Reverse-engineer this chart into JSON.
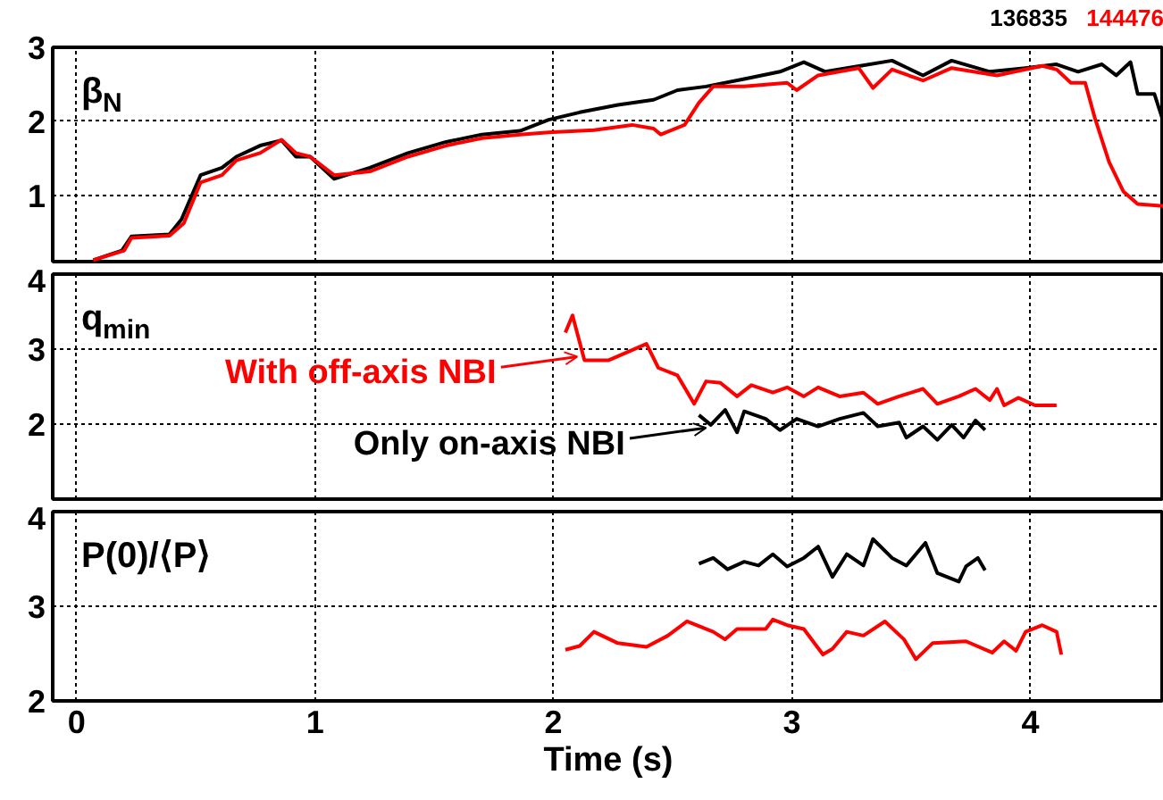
{
  "chart_data": [
    {
      "type": "line",
      "title": "β$_{N}$",
      "xlim": [
        -0.1,
        4.56
      ],
      "xticks": [
        0,
        1,
        2,
        3,
        4
      ],
      "ylim": [
        0.1,
        3
      ],
      "yticks": [
        1,
        2,
        3
      ],
      "grid": true,
      "tick_labels": "y",
      "series": [
        {
          "name": "136835",
          "color": "#000000",
          "x": [
            0.07,
            0.19,
            0.23,
            0.39,
            0.44,
            0.52,
            0.61,
            0.67,
            0.77,
            0.86,
            0.92,
            0.98,
            1.08,
            1.23,
            1.39,
            1.55,
            1.7,
            1.86,
            1.98,
            2.11,
            2.27,
            2.42,
            2.52,
            2.64,
            2.8,
            2.95,
            3.05,
            3.14,
            3.27,
            3.42,
            3.55,
            3.67,
            3.83,
            3.98,
            4.11,
            4.2,
            4.3,
            4.36,
            4.42,
            4.45,
            4.52,
            4.56
          ],
          "values": [
            0.12,
            0.25,
            0.44,
            0.47,
            0.67,
            1.27,
            1.37,
            1.52,
            1.67,
            1.74,
            1.52,
            1.52,
            1.22,
            1.37,
            1.57,
            1.72,
            1.82,
            1.87,
            2.02,
            2.12,
            2.22,
            2.29,
            2.42,
            2.47,
            2.57,
            2.67,
            2.8,
            2.67,
            2.74,
            2.82,
            2.62,
            2.82,
            2.67,
            2.72,
            2.77,
            2.67,
            2.77,
            2.62,
            2.8,
            2.37,
            2.37,
            1.97
          ]
        },
        {
          "name": "144476",
          "color": "#ff0000",
          "x": [
            0.07,
            0.2,
            0.23,
            0.39,
            0.45,
            0.52,
            0.61,
            0.67,
            0.77,
            0.86,
            0.92,
            0.98,
            1.08,
            1.23,
            1.39,
            1.55,
            1.7,
            1.86,
            1.98,
            2.17,
            2.33,
            2.42,
            2.45,
            2.55,
            2.61,
            2.67,
            2.8,
            2.98,
            3.02,
            3.11,
            3.28,
            3.34,
            3.42,
            3.55,
            3.67,
            3.86,
            4.05,
            4.11,
            4.17,
            4.23,
            4.27,
            4.33,
            4.39,
            4.45,
            4.56
          ],
          "values": [
            0.12,
            0.25,
            0.42,
            0.45,
            0.62,
            1.17,
            1.27,
            1.47,
            1.57,
            1.75,
            1.57,
            1.52,
            1.27,
            1.32,
            1.52,
            1.67,
            1.77,
            1.82,
            1.85,
            1.88,
            1.95,
            1.9,
            1.82,
            1.95,
            2.25,
            2.47,
            2.47,
            2.52,
            2.42,
            2.62,
            2.72,
            2.45,
            2.7,
            2.55,
            2.72,
            2.62,
            2.75,
            2.7,
            2.52,
            2.52,
            2.05,
            1.45,
            1.05,
            0.88,
            0.85
          ]
        }
      ]
    },
    {
      "type": "line",
      "title": "q$_{min}$",
      "xlim": [
        -0.1,
        4.56
      ],
      "xticks": [
        0,
        1,
        2,
        3,
        4
      ],
      "ylim": [
        1,
        4
      ],
      "yticks": [
        2,
        3,
        4
      ],
      "grid": true,
      "tick_labels": "y",
      "annotations": [
        {
          "text": "With off-axis NBI",
          "x": 2.1,
          "y": 2.9
        },
        {
          "text": "Only on-axis NBI",
          "x": 2.64,
          "y": 1.95
        }
      ],
      "series": [
        {
          "color": "#000000",
          "x": [
            2.61,
            2.66,
            2.72,
            2.77,
            2.8,
            2.89,
            2.95,
            3.02,
            3.11,
            3.2,
            3.3,
            3.36,
            3.45,
            3.48,
            3.55,
            3.61,
            3.67,
            3.72,
            3.77,
            3.81
          ],
          "values": [
            2.12,
            1.99,
            2.19,
            1.89,
            2.17,
            2.07,
            1.92,
            2.07,
            1.97,
            2.07,
            2.15,
            1.97,
            2.02,
            1.82,
            1.97,
            1.79,
            1.99,
            1.82,
            2.05,
            1.92
          ]
        },
        {
          "color": "#ff0000",
          "x": [
            2.05,
            2.08,
            2.13,
            2.23,
            2.39,
            2.44,
            2.52,
            2.59,
            2.64,
            2.7,
            2.77,
            2.83,
            2.92,
            2.98,
            3.05,
            3.11,
            3.2,
            3.3,
            3.36,
            3.45,
            3.55,
            3.61,
            3.7,
            3.77,
            3.83,
            3.86,
            3.89,
            3.95,
            4.02,
            4.11
          ],
          "values": [
            3.22,
            3.45,
            2.85,
            2.85,
            3.07,
            2.75,
            2.65,
            2.27,
            2.57,
            2.55,
            2.37,
            2.52,
            2.42,
            2.49,
            2.37,
            2.49,
            2.37,
            2.42,
            2.27,
            2.37,
            2.47,
            2.27,
            2.37,
            2.47,
            2.32,
            2.47,
            2.25,
            2.35,
            2.25,
            2.25
          ]
        }
      ]
    },
    {
      "type": "line",
      "title": "P(0)/⟨P⟩",
      "xlabel": "Time (s)",
      "xlim": [
        -0.1,
        4.56
      ],
      "xticks": [
        0,
        1,
        2,
        3,
        4
      ],
      "ylim": [
        2,
        4
      ],
      "yticks": [
        2,
        3,
        4
      ],
      "grid": true,
      "series": [
        {
          "color": "#000000",
          "x": [
            2.61,
            2.67,
            2.73,
            2.8,
            2.86,
            2.92,
            2.98,
            3.05,
            3.11,
            3.17,
            3.23,
            3.3,
            3.34,
            3.42,
            3.48,
            3.56,
            3.61,
            3.7,
            3.73,
            3.78,
            3.81
          ],
          "values": [
            3.45,
            3.51,
            3.39,
            3.47,
            3.43,
            3.55,
            3.42,
            3.51,
            3.63,
            3.31,
            3.55,
            3.43,
            3.71,
            3.51,
            3.43,
            3.67,
            3.35,
            3.26,
            3.42,
            3.51,
            3.38
          ]
        },
        {
          "color": "#ff0000",
          "x": [
            2.05,
            2.11,
            2.17,
            2.27,
            2.39,
            2.48,
            2.56,
            2.67,
            2.72,
            2.77,
            2.89,
            2.92,
            2.98,
            3.05,
            3.13,
            3.17,
            3.23,
            3.3,
            3.39,
            3.47,
            3.52,
            3.59,
            3.73,
            3.84,
            3.89,
            3.94,
            3.98,
            4.05,
            4.11,
            4.13
          ],
          "values": [
            2.54,
            2.58,
            2.73,
            2.61,
            2.57,
            2.69,
            2.84,
            2.73,
            2.65,
            2.76,
            2.76,
            2.86,
            2.8,
            2.76,
            2.49,
            2.55,
            2.73,
            2.69,
            2.84,
            2.65,
            2.44,
            2.61,
            2.63,
            2.51,
            2.63,
            2.53,
            2.73,
            2.8,
            2.73,
            2.49
          ]
        }
      ]
    }
  ]
}
